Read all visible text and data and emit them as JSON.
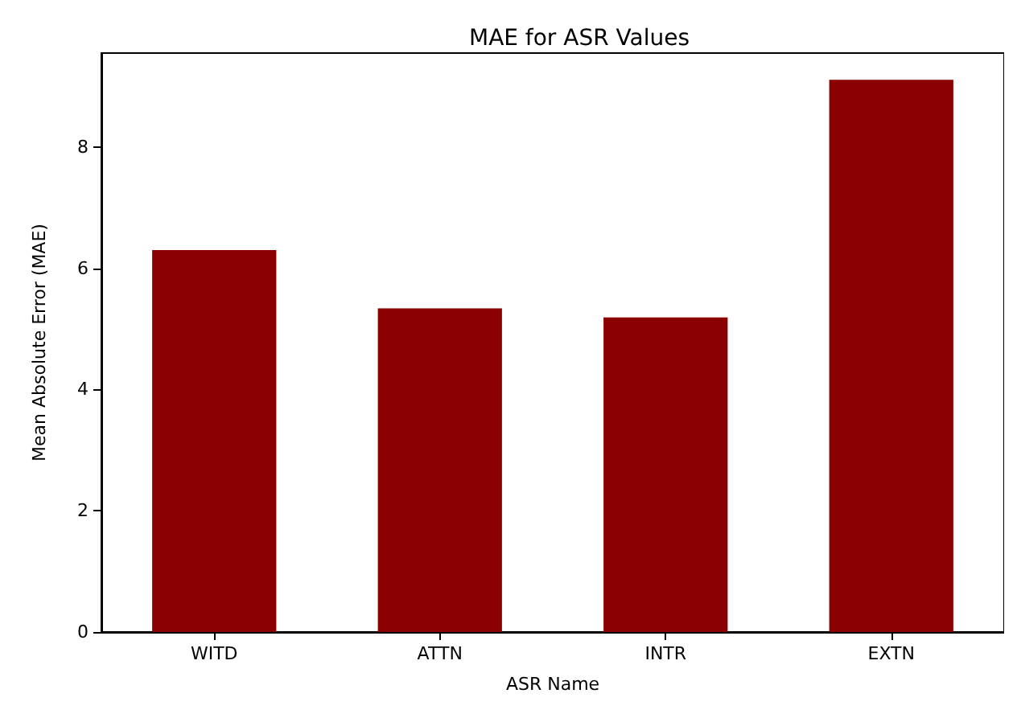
{
  "chart_data": {
    "type": "bar",
    "title": "MAE for ASR Values",
    "xlabel": "ASR Name",
    "ylabel": "Mean Absolute Error (MAE)",
    "categories": [
      "WITD",
      "ATTN",
      "INTR",
      "EXTN"
    ],
    "values": [
      6.3,
      5.34,
      5.19,
      9.11
    ],
    "color": "#8b0000",
    "ylim": [
      0,
      9.55
    ],
    "yticks": [
      0,
      2,
      4,
      6,
      8
    ],
    "grid": false
  }
}
